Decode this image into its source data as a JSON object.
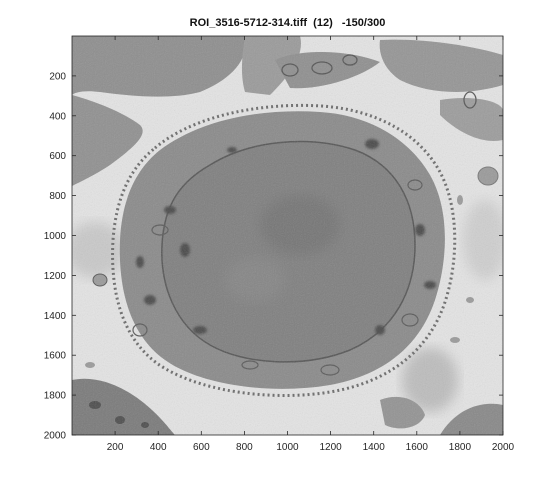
{
  "figure": {
    "title": "ROI_3516-5712-314.tiff  (12)   -150/300"
  },
  "axes": {
    "xlim": [
      0,
      2000
    ],
    "ylim": [
      0,
      2000
    ],
    "y_reversed": true,
    "x_ticks": [
      200,
      400,
      600,
      800,
      1000,
      1200,
      1400,
      1600,
      1800,
      2000
    ],
    "y_ticks": [
      200,
      400,
      600,
      800,
      1000,
      1200,
      1400,
      1600,
      1800,
      2000
    ]
  },
  "image": {
    "description_icon": "grayscale-em-micrograph",
    "colors": {
      "background": "#e6e6e6",
      "cytoplasm": "#8f8f8f",
      "nucleus": "#7c7c7c",
      "dark": "#3f3f3f",
      "axis": "#262626"
    }
  }
}
